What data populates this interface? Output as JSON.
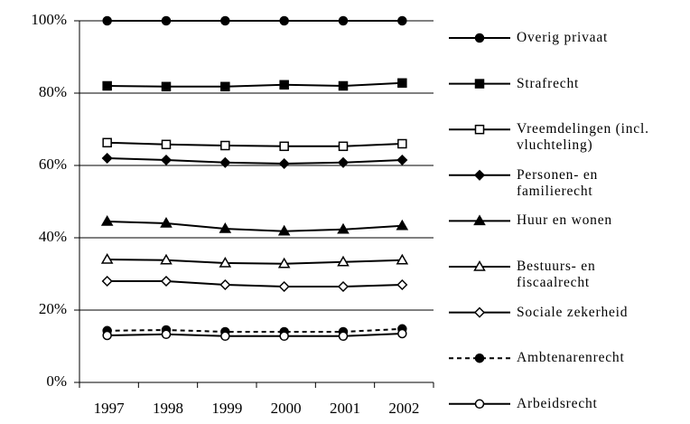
{
  "chart_data": {
    "type": "line",
    "categories": [
      "1997",
      "1998",
      "1999",
      "2000",
      "2001",
      "2002"
    ],
    "ylim": [
      0,
      100
    ],
    "yticks": [
      {
        "value": 0,
        "label": "0%"
      },
      {
        "value": 20,
        "label": "20%"
      },
      {
        "value": 40,
        "label": "40%"
      },
      {
        "value": 60,
        "label": "60%"
      },
      {
        "value": 80,
        "label": "80%"
      },
      {
        "value": 100,
        "label": "100%"
      }
    ],
    "grid": true,
    "legend": "right",
    "series": [
      {
        "name": "Overig privaat",
        "color": "#000000",
        "marker": "circle",
        "filled": true,
        "dashed": false,
        "values": [
          100,
          100,
          100,
          100,
          100,
          100
        ]
      },
      {
        "name": "Strafrecht",
        "color": "#000000",
        "marker": "square",
        "filled": true,
        "dashed": false,
        "values": [
          82,
          81.8,
          81.8,
          82.3,
          82,
          82.8
        ]
      },
      {
        "name": "Vreemdelingen (incl.\nvluchteling)",
        "color": "#000000",
        "marker": "square",
        "filled": false,
        "dashed": false,
        "values": [
          66.3,
          65.8,
          65.5,
          65.3,
          65.3,
          66
        ]
      },
      {
        "name": "Personen- en\nfamilierecht",
        "color": "#000000",
        "marker": "diamond",
        "filled": true,
        "dashed": false,
        "values": [
          62,
          61.5,
          60.8,
          60.5,
          60.8,
          61.5
        ]
      },
      {
        "name": "Huur en wonen",
        "color": "#000000",
        "marker": "triangle",
        "filled": true,
        "dashed": false,
        "values": [
          44.5,
          44,
          42.5,
          41.8,
          42.3,
          43.3
        ]
      },
      {
        "name": "Bestuurs- en\nfiscaalrecht",
        "color": "#000000",
        "marker": "triangle",
        "filled": false,
        "dashed": false,
        "values": [
          34,
          33.8,
          33,
          32.8,
          33.3,
          33.8
        ]
      },
      {
        "name": "Sociale zekerheid",
        "color": "#000000",
        "marker": "diamond",
        "filled": false,
        "dashed": false,
        "values": [
          28,
          28,
          27,
          26.5,
          26.5,
          27
        ]
      },
      {
        "name": "Ambtenarenrecht",
        "color": "#000000",
        "marker": "circle",
        "filled": true,
        "dashed": true,
        "values": [
          14.3,
          14.5,
          14,
          14,
          14,
          14.8
        ]
      },
      {
        "name": "Arbeidsrecht",
        "color": "#000000",
        "marker": "circle",
        "filled": false,
        "dashed": false,
        "values": [
          13,
          13.3,
          12.8,
          12.8,
          12.8,
          13.5
        ]
      }
    ]
  }
}
